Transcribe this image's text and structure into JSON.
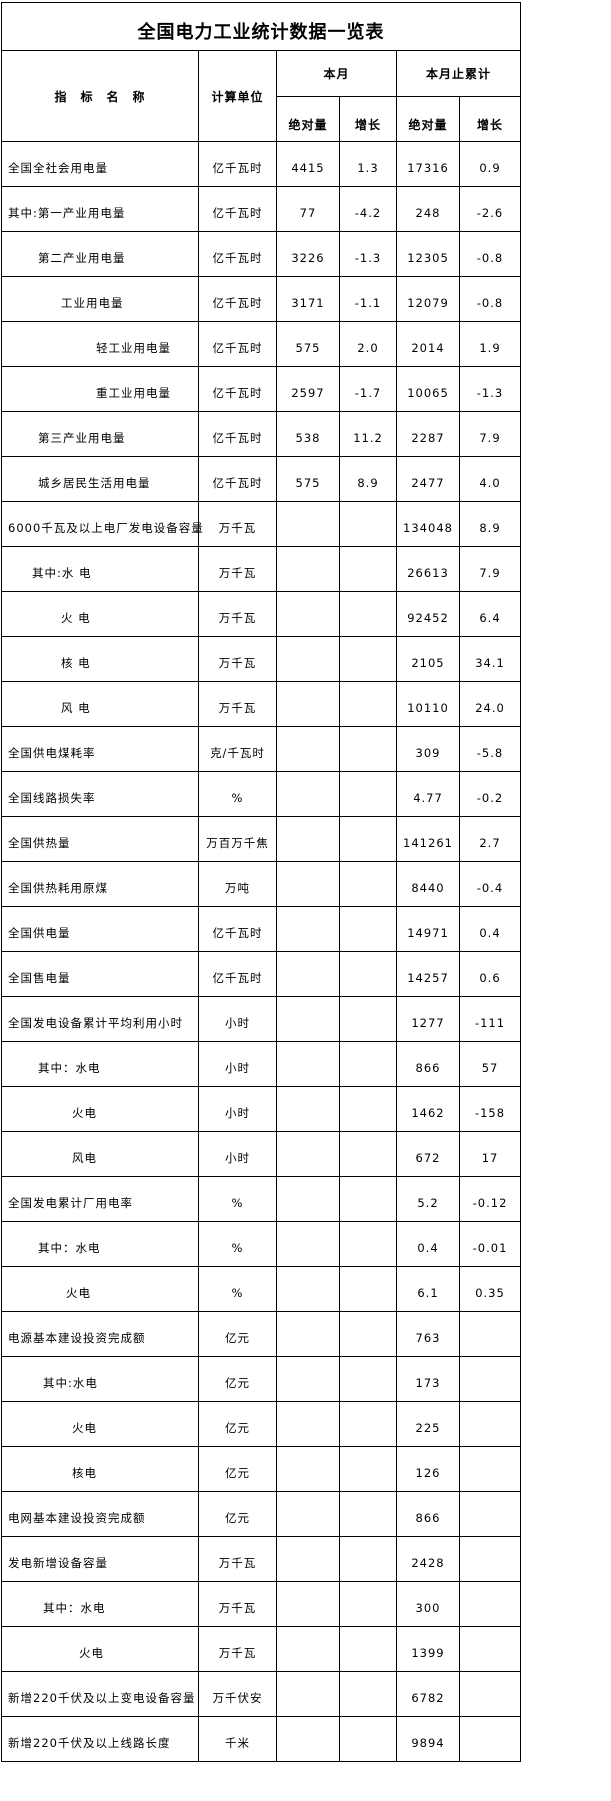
{
  "title": "全国电力工业统计数据一览表",
  "headers": {
    "name": "指　标　名　称",
    "unit": "计算单位",
    "this_month": "本月",
    "cumulative": "本月止累计",
    "absolute": "绝对量",
    "growth": "增长"
  },
  "rows": [
    {
      "name": "全国全社会用电量",
      "indent": 0,
      "unit": "亿千瓦时",
      "m_abs": "4415",
      "m_growth": "1.3",
      "c_abs": "17316",
      "c_growth": "0.9"
    },
    {
      "name": "其中:第一产业用电量",
      "indent": 0,
      "unit": "亿千瓦时",
      "m_abs": "77",
      "m_growth": "-4.2",
      "c_abs": "248",
      "c_growth": "-2.6"
    },
    {
      "name": "第二产业用电量",
      "indent": 1,
      "unit": "亿千瓦时",
      "m_abs": "3226",
      "m_growth": "-1.3",
      "c_abs": "12305",
      "c_growth": "-0.8"
    },
    {
      "name": "工业用电量",
      "indent": 2,
      "unit": "亿千瓦时",
      "m_abs": "3171",
      "m_growth": "-1.1",
      "c_abs": "12079",
      "c_growth": "-0.8"
    },
    {
      "name": "轻工业用电量",
      "indent": 3,
      "unit": "亿千瓦时",
      "m_abs": "575",
      "m_growth": "2.0",
      "c_abs": "2014",
      "c_growth": "1.9"
    },
    {
      "name": "重工业用电量",
      "indent": 3,
      "unit": "亿千瓦时",
      "m_abs": "2597",
      "m_growth": "-1.7",
      "c_abs": "10065",
      "c_growth": "-1.3"
    },
    {
      "name": "第三产业用电量",
      "indent": 1,
      "unit": "亿千瓦时",
      "m_abs": "538",
      "m_growth": "11.2",
      "c_abs": "2287",
      "c_growth": "7.9"
    },
    {
      "name": "城乡居民生活用电量",
      "indent": 1,
      "unit": "亿千瓦时",
      "m_abs": "575",
      "m_growth": "8.9",
      "c_abs": "2477",
      "c_growth": "4.0"
    },
    {
      "name": "6000千瓦及以上电厂发电设备容量",
      "indent": 0,
      "unit": "万千瓦",
      "m_abs": "",
      "m_growth": "",
      "c_abs": "134048",
      "c_growth": "8.9"
    },
    {
      "name": "其中:水 电",
      "indent": 4,
      "unit": "万千瓦",
      "m_abs": "",
      "m_growth": "",
      "c_abs": "26613",
      "c_growth": "7.9"
    },
    {
      "name": "火 电",
      "indent": 2,
      "unit": "万千瓦",
      "m_abs": "",
      "m_growth": "",
      "c_abs": "92452",
      "c_growth": "6.4"
    },
    {
      "name": "核 电",
      "indent": 2,
      "unit": "万千瓦",
      "m_abs": "",
      "m_growth": "",
      "c_abs": "2105",
      "c_growth": "34.1"
    },
    {
      "name": "风 电",
      "indent": 2,
      "unit": "万千瓦",
      "m_abs": "",
      "m_growth": "",
      "c_abs": "10110",
      "c_growth": "24.0"
    },
    {
      "name": "全国供电煤耗率",
      "indent": 0,
      "unit": "克/千瓦时",
      "m_abs": "",
      "m_growth": "",
      "c_abs": "309",
      "c_growth": "-5.8"
    },
    {
      "name": "全国线路损失率",
      "indent": 0,
      "unit": "%",
      "m_abs": "",
      "m_growth": "",
      "c_abs": "4.77",
      "c_growth": "-0.2"
    },
    {
      "name": "全国供热量",
      "indent": 0,
      "unit": "万百万千焦",
      "m_abs": "",
      "m_growth": "",
      "c_abs": "141261",
      "c_growth": "2.7"
    },
    {
      "name": "全国供热耗用原煤",
      "indent": 0,
      "unit": "万吨",
      "m_abs": "",
      "m_growth": "",
      "c_abs": "8440",
      "c_growth": "-0.4"
    },
    {
      "name": "全国供电量",
      "indent": 0,
      "unit": "亿千瓦时",
      "m_abs": "",
      "m_growth": "",
      "c_abs": "14971",
      "c_growth": "0.4"
    },
    {
      "name": "全国售电量",
      "indent": 0,
      "unit": "亿千瓦时",
      "m_abs": "",
      "m_growth": "",
      "c_abs": "14257",
      "c_growth": "0.6"
    },
    {
      "name": "全国发电设备累计平均利用小时",
      "indent": 0,
      "unit": "小时",
      "m_abs": "",
      "m_growth": "",
      "c_abs": "1277",
      "c_growth": "-111"
    },
    {
      "name": "其中：水电",
      "indent": 1,
      "unit": "小时",
      "m_abs": "",
      "m_growth": "",
      "c_abs": "866",
      "c_growth": "57"
    },
    {
      "name": "火电",
      "indent": 5,
      "unit": "小时",
      "m_abs": "",
      "m_growth": "",
      "c_abs": "1462",
      "c_growth": "-158"
    },
    {
      "name": "风电",
      "indent": 5,
      "unit": "小时",
      "m_abs": "",
      "m_growth": "",
      "c_abs": "672",
      "c_growth": "17"
    },
    {
      "name": "全国发电累计厂用电率",
      "indent": 0,
      "unit": "%",
      "m_abs": "",
      "m_growth": "",
      "c_abs": "5.2",
      "c_growth": "-0.12"
    },
    {
      "name": "其中：水电",
      "indent": 1,
      "unit": "%",
      "m_abs": "",
      "m_growth": "",
      "c_abs": "0.4",
      "c_growth": "-0.01"
    },
    {
      "name": "火电",
      "indent": 6,
      "unit": "%",
      "m_abs": "",
      "m_growth": "",
      "c_abs": "6.1",
      "c_growth": "0.35"
    },
    {
      "name": "电源基本建设投资完成额",
      "indent": 0,
      "unit": "亿元",
      "m_abs": "",
      "m_growth": "",
      "c_abs": "763",
      "c_growth": ""
    },
    {
      "name": "其中:水电",
      "indent": 7,
      "unit": "亿元",
      "m_abs": "",
      "m_growth": "",
      "c_abs": "173",
      "c_growth": ""
    },
    {
      "name": "火电",
      "indent": 5,
      "unit": "亿元",
      "m_abs": "",
      "m_growth": "",
      "c_abs": "225",
      "c_growth": ""
    },
    {
      "name": "核电",
      "indent": 5,
      "unit": "亿元",
      "m_abs": "",
      "m_growth": "",
      "c_abs": "126",
      "c_growth": ""
    },
    {
      "name": "电网基本建设投资完成额",
      "indent": 0,
      "unit": "亿元",
      "m_abs": "",
      "m_growth": "",
      "c_abs": "866",
      "c_growth": ""
    },
    {
      "name": "发电新增设备容量",
      "indent": 0,
      "unit": "万千瓦",
      "m_abs": "",
      "m_growth": "",
      "c_abs": "2428",
      "c_growth": ""
    },
    {
      "name": "其中：水电",
      "indent": 7,
      "unit": "万千瓦",
      "m_abs": "",
      "m_growth": "",
      "c_abs": "300",
      "c_growth": ""
    },
    {
      "name": "火电",
      "indent": 8,
      "unit": "万千瓦",
      "m_abs": "",
      "m_growth": "",
      "c_abs": "1399",
      "c_growth": ""
    },
    {
      "name": "新增220千伏及以上变电设备容量",
      "indent": 0,
      "unit": "万千伏安",
      "m_abs": "",
      "m_growth": "",
      "c_abs": "6782",
      "c_growth": ""
    },
    {
      "name": "新增220千伏及以上线路长度",
      "indent": 0,
      "unit": "千米",
      "m_abs": "",
      "m_growth": "",
      "c_abs": "9894",
      "c_growth": ""
    }
  ]
}
